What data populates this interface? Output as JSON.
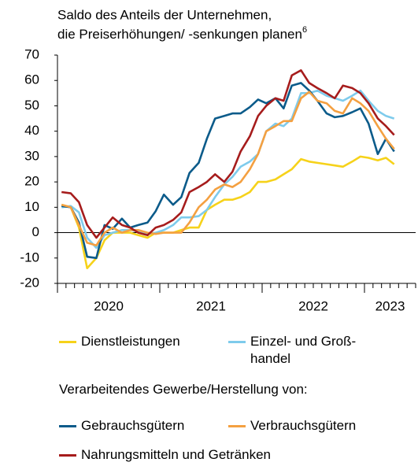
{
  "chart_data": {
    "type": "line",
    "title": [
      "Saldo des Anteils der Unternehmen,",
      "die Preiserhöhungen/ -senkungen planen"
    ],
    "title_footnote": "6",
    "legend_group_title": "Verarbeitendes Gewerbe/Herstellung von:",
    "x": [
      2020.04,
      2020.13,
      2020.21,
      2020.29,
      2020.38,
      2020.46,
      2020.54,
      2020.63,
      2020.71,
      2020.79,
      2020.88,
      2020.96,
      2021.04,
      2021.13,
      2021.21,
      2021.29,
      2021.38,
      2021.46,
      2021.54,
      2021.63,
      2021.71,
      2021.79,
      2021.88,
      2021.96,
      2022.04,
      2022.13,
      2022.21,
      2022.29,
      2022.38,
      2022.46,
      2022.54,
      2022.63,
      2022.71,
      2022.79,
      2022.88,
      2022.96,
      2023.04,
      2023.13,
      2023.21,
      2023.29
    ],
    "xlim": [
      2020,
      2023.5
    ],
    "xticks": [
      {
        "value": 2020.5,
        "label": "2020"
      },
      {
        "value": 2021.5,
        "label": "2021"
      },
      {
        "value": 2022.5,
        "label": "2022"
      },
      {
        "value": 2023.25,
        "label": "2023"
      }
    ],
    "ylim": [
      -20,
      70
    ],
    "yticks": [
      -20,
      -10,
      0,
      10,
      20,
      30,
      40,
      50,
      60,
      70
    ],
    "grid": false,
    "series": [
      {
        "name": "Dienstleistungen",
        "color": "#f6d21a",
        "values": [
          11,
          10,
          2,
          -14,
          -10,
          -3,
          0,
          0,
          0,
          -1,
          -2,
          0,
          0,
          0,
          1,
          2,
          2,
          9,
          11,
          13,
          13,
          14,
          16,
          20,
          20,
          21,
          23,
          25,
          29,
          28,
          27.5,
          27,
          26.5,
          26,
          28,
          30,
          29.5,
          28.5,
          29.5,
          27
        ]
      },
      {
        "name": "Einzel- und Groß­handel",
        "color": "#7ecbec",
        "values": [
          10,
          10.5,
          8,
          -2,
          -6,
          -1,
          0,
          1,
          1,
          0.5,
          -0.5,
          0,
          1,
          3,
          6,
          6,
          6.5,
          9,
          14,
          19,
          22,
          26,
          28,
          31,
          40,
          43,
          42,
          45,
          55,
          55,
          56,
          54,
          53,
          52,
          54,
          56,
          52,
          48,
          46,
          45
        ]
      },
      {
        "name": "Gebrauchsgütern",
        "color": "#0b5b8a",
        "values": [
          10.5,
          10,
          4,
          -9.5,
          -10,
          3,
          1.5,
          5.5,
          2,
          3,
          4,
          8.5,
          15,
          11,
          14,
          23.5,
          27.5,
          37,
          45,
          46,
          47,
          47,
          49.5,
          52.5,
          51,
          53,
          49,
          58,
          59,
          56,
          52,
          47,
          45.5,
          46,
          47.5,
          49,
          43,
          31,
          37,
          32
        ]
      },
      {
        "name": "Verbrauchsgütern",
        "color": "#f4a041",
        "values": [
          11,
          10,
          3,
          -4,
          -5,
          0,
          2,
          0,
          1,
          1,
          0,
          -0.5,
          0,
          0,
          0,
          4,
          10,
          13,
          17,
          19,
          18,
          20,
          25,
          31,
          40,
          42,
          44,
          44,
          53,
          55.5,
          52,
          51,
          48,
          47,
          53,
          51,
          48,
          42,
          37,
          33
        ]
      },
      {
        "name": "Nahrungsmitteln und Getränken",
        "color": "#a61c1c",
        "values": [
          16,
          15.5,
          12,
          3,
          -2,
          2,
          6,
          3,
          2,
          0,
          -1,
          2,
          3,
          5,
          8,
          16,
          18,
          20,
          23,
          20,
          24,
          32,
          38,
          46,
          50,
          53,
          52,
          62,
          64,
          59,
          57,
          55,
          53,
          58,
          57,
          55,
          51,
          45,
          42,
          38.5
        ]
      }
    ]
  }
}
